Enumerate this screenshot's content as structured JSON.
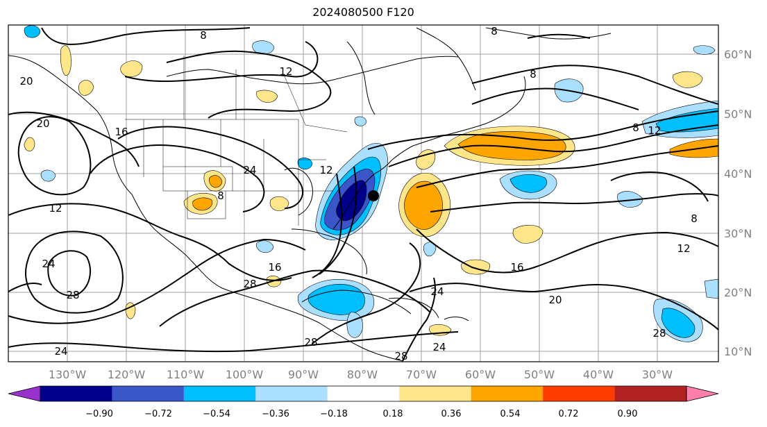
{
  "title": "2024080500 F120",
  "map": {
    "lat_labels": [
      "60°N",
      "50°N",
      "40°N",
      "30°N",
      "20°N",
      "10°N"
    ],
    "lon_labels": [
      "130°W",
      "120°W",
      "110°W",
      "100°W",
      "90°W",
      "80°W",
      "70°W",
      "60°W",
      "50°W",
      "40°W",
      "30°W"
    ],
    "contour_labels": [
      "8",
      "12",
      "20",
      "16",
      "20",
      "24",
      "12",
      "8",
      "8",
      "12",
      "8",
      "12",
      "16",
      "24",
      "28",
      "24",
      "28",
      "20",
      "28",
      "24",
      "8",
      "24",
      "28",
      "16",
      "8",
      "12",
      "28"
    ],
    "storm_marker": "black-dot"
  },
  "colorbar": {
    "ticks": [
      "−0.90",
      "−0.72",
      "−0.54",
      "−0.36",
      "−0.18",
      "0.18",
      "0.36",
      "0.54",
      "0.72",
      "0.90"
    ],
    "colors": [
      "#9932cc",
      "#00008b",
      "#3a56c8",
      "#00bfff",
      "#aadfff",
      "#ffffff",
      "#ffe68a",
      "#ffa500",
      "#ff3d00",
      "#b22222",
      "#ff7faa"
    ]
  }
}
